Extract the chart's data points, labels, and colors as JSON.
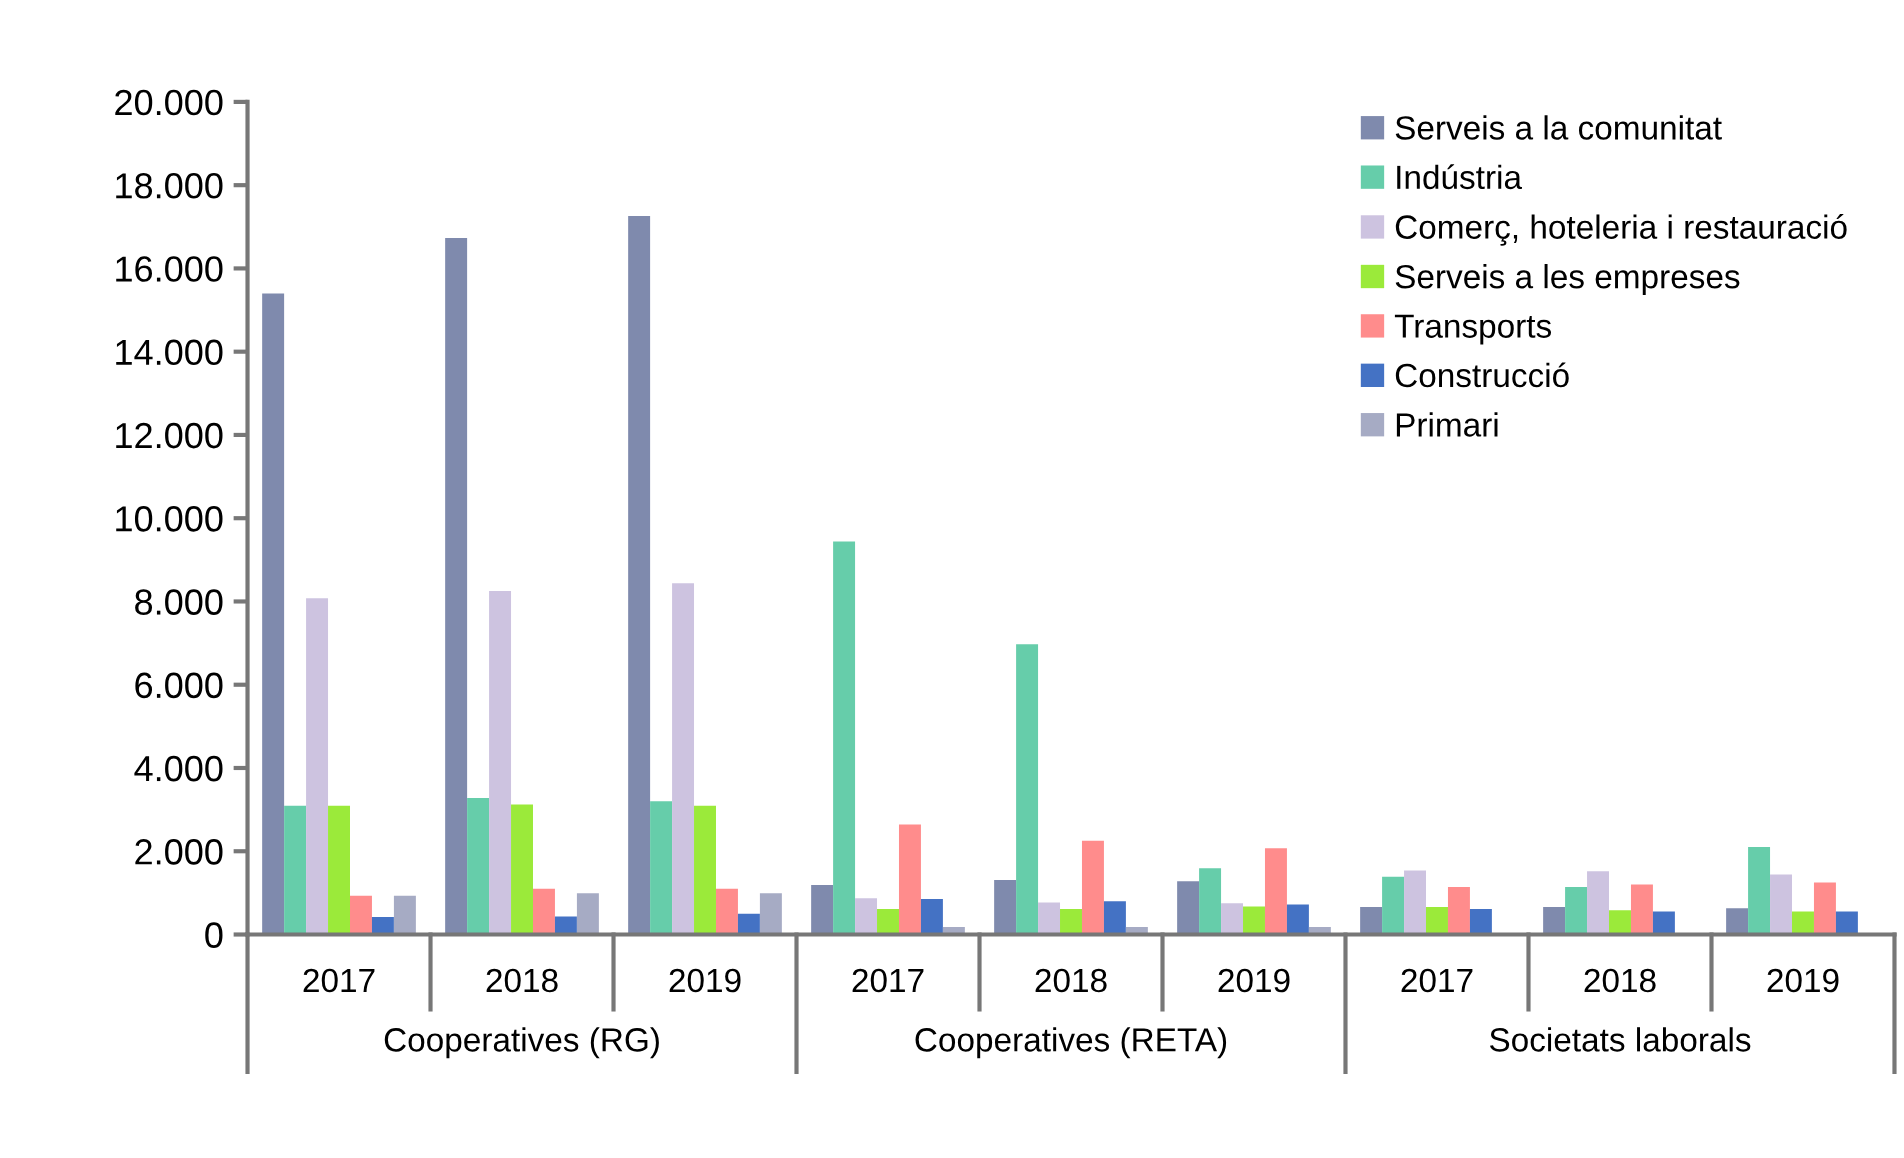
{
  "chart_data": {
    "type": "bar",
    "categories": [
      "2017",
      "2018",
      "2019",
      "2017",
      "2018",
      "2019",
      "2017",
      "2018",
      "2019"
    ],
    "annotations": [
      "Cooperatives (RG)",
      "Cooperatives (RETA)",
      "Societats laborals"
    ],
    "series": [
      {
        "name": "Serveis a la comunitat",
        "color": "#7f8aad",
        "values": [
          15400,
          16730,
          17260,
          1190,
          1310,
          1280,
          660,
          660,
          630
        ]
      },
      {
        "name": "Indústria",
        "color": "#66cdaa",
        "values": [
          3090,
          3280,
          3200,
          9440,
          6970,
          1590,
          1390,
          1140,
          2100
        ]
      },
      {
        "name": "Comerç, hoteleria i restauració",
        "color": "#cdc3e0",
        "values": [
          8080,
          8250,
          8440,
          870,
          770,
          750,
          1540,
          1520,
          1440
        ]
      },
      {
        "name": "Serveis a les empreses",
        "color": "#9bea3a",
        "values": [
          3090,
          3120,
          3090,
          610,
          610,
          670,
          660,
          580,
          550
        ]
      },
      {
        "name": "Transports",
        "color": "#ff8c8c",
        "values": [
          930,
          1100,
          1100,
          2640,
          2250,
          2070,
          1140,
          1200,
          1250
        ]
      },
      {
        "name": "Construcció",
        "color": "#4472c4",
        "values": [
          420,
          430,
          500,
          850,
          800,
          720,
          610,
          550,
          550
        ]
      },
      {
        "name": "Primari",
        "color": "#a6abc4",
        "values": [
          930,
          990,
          990,
          180,
          180,
          180,
          null,
          null,
          null
        ]
      }
    ],
    "ylim": [
      0,
      20000
    ],
    "yticks": [
      0,
      {
        "value": 2000,
        "label": "2.000"
      },
      {
        "value": 4000,
        "label": "4.000"
      },
      {
        "value": 6000,
        "label": "6.000"
      },
      {
        "value": 8000,
        "label": "8.000"
      },
      {
        "value": 10000,
        "label": "10.000"
      },
      {
        "value": 12000,
        "label": "12.000"
      },
      {
        "value": 14000,
        "label": "14.000"
      },
      {
        "value": 16000,
        "label": "16.000"
      },
      {
        "value": 18000,
        "label": "18.000"
      },
      {
        "value": 20000,
        "label": "20.000"
      }
    ],
    "grid": false,
    "legend": "top right"
  }
}
